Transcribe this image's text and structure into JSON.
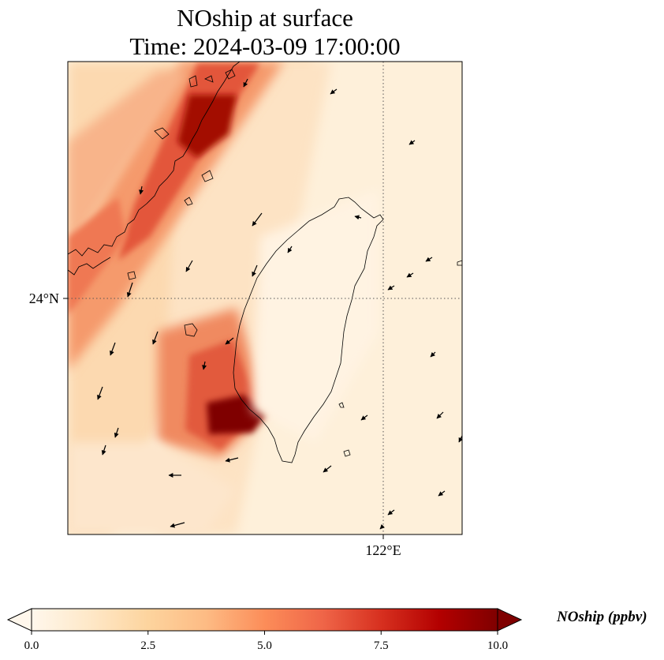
{
  "title": {
    "line1": "NOship at surface",
    "line2": "Time: 2024-03-09 17:00:00"
  },
  "map": {
    "lat_label": "24°N",
    "lon_label": "122°E",
    "field": "NOship",
    "units": "ppbv",
    "background_color": "#fff0dc",
    "plume_colors": [
      "#fdd49e",
      "#fc8d59",
      "#d7301f",
      "#7f0000"
    ]
  },
  "colorbar": {
    "title": "NOship (ppbv)",
    "ticks": [
      "0.0",
      "2.5",
      "5.0",
      "7.5",
      "10.0"
    ],
    "min": 0,
    "max": 10,
    "extend": "both",
    "colormap": "OrRd",
    "colors": [
      "#fff7ec",
      "#fee8c8",
      "#fdd49e",
      "#fdbb84",
      "#fc8d59",
      "#ef6548",
      "#d7301f",
      "#b30000",
      "#7f0000"
    ]
  }
}
